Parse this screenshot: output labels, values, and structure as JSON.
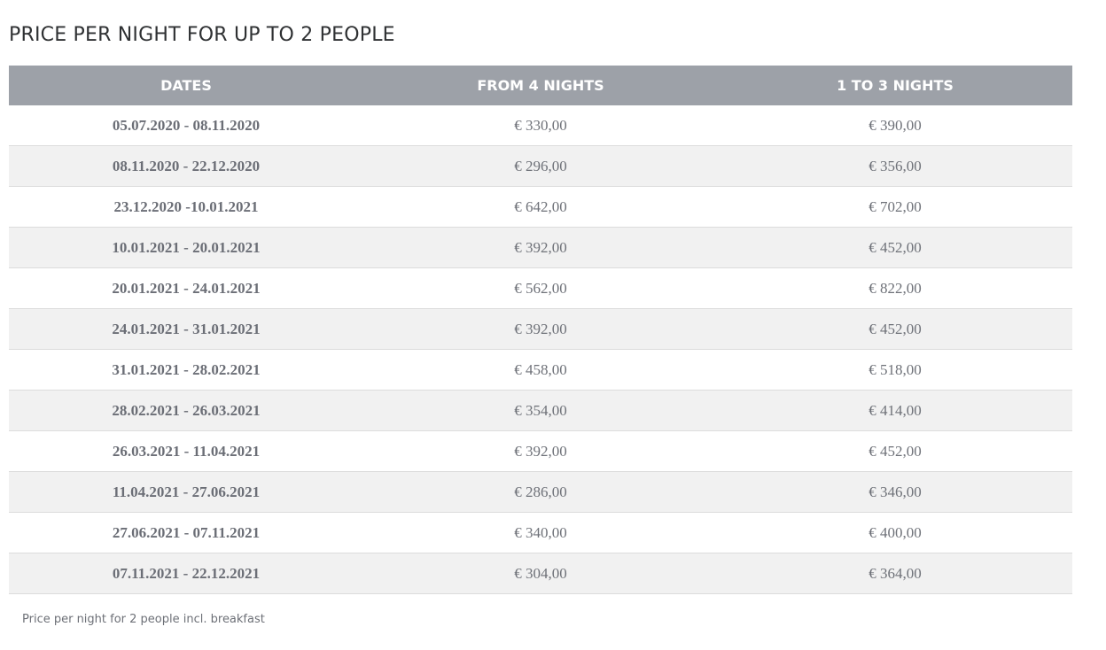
{
  "title": "PRICE PER NIGHT FOR UP TO 2 PEOPLE",
  "table": {
    "headers": {
      "dates": "DATES",
      "from_4_nights": "FROM 4 NIGHTS",
      "one_to_three_nights": "1 TO 3 NIGHTS"
    },
    "rows": [
      {
        "dates": "05.07.2020 - 08.11.2020",
        "from_4_nights": "€ 330,00",
        "one_to_three_nights": "€ 390,00"
      },
      {
        "dates": "08.11.2020 - 22.12.2020",
        "from_4_nights": "€ 296,00",
        "one_to_three_nights": "€ 356,00"
      },
      {
        "dates": "23.12.2020 -10.01.2021",
        "from_4_nights": "€ 642,00",
        "one_to_three_nights": "€ 702,00"
      },
      {
        "dates": "10.01.2021 - 20.01.2021",
        "from_4_nights": "€ 392,00",
        "one_to_three_nights": "€ 452,00"
      },
      {
        "dates": "20.01.2021 - 24.01.2021",
        "from_4_nights": "€ 562,00",
        "one_to_three_nights": "€ 822,00"
      },
      {
        "dates": "24.01.2021 - 31.01.2021",
        "from_4_nights": "€ 392,00",
        "one_to_three_nights": "€ 452,00"
      },
      {
        "dates": "31.01.2021 - 28.02.2021",
        "from_4_nights": "€ 458,00",
        "one_to_three_nights": "€ 518,00"
      },
      {
        "dates": "28.02.2021 - 26.03.2021",
        "from_4_nights": "€ 354,00",
        "one_to_three_nights": "€ 414,00"
      },
      {
        "dates": "26.03.2021 - 11.04.2021",
        "from_4_nights": "€ 392,00",
        "one_to_three_nights": "€ 452,00"
      },
      {
        "dates": "11.04.2021 - 27.06.2021",
        "from_4_nights": "€ 286,00",
        "one_to_three_nights": "€ 346,00"
      },
      {
        "dates": "27.06.2021 - 07.11.2021",
        "from_4_nights": "€ 340,00",
        "one_to_three_nights": "€ 400,00"
      },
      {
        "dates": "07.11.2021 - 22.12.2021",
        "from_4_nights": "€ 304,00",
        "one_to_three_nights": "€ 364,00"
      }
    ]
  },
  "footnote": "Price per night for 2 people incl. breakfast",
  "colors": {
    "header_bg": "#9da1a8",
    "header_text": "#ffffff",
    "stripe_bg": "#f1f1f1",
    "cell_text": "#6e7178",
    "title_text": "#2f3133"
  }
}
